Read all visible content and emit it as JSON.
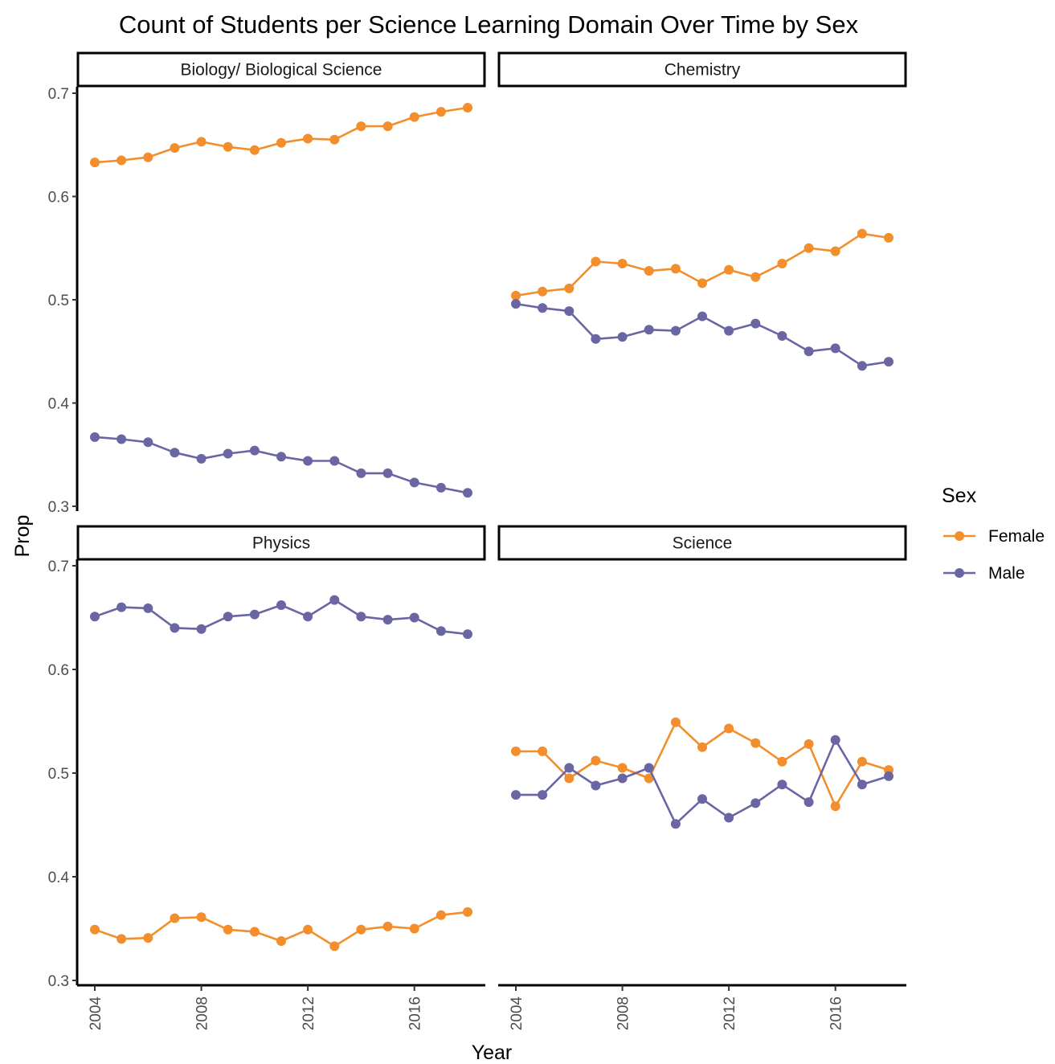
{
  "chart_data": {
    "type": "line",
    "title": "Count of Students per Science Learning Domain Over Time by Sex",
    "xlabel": "Year",
    "ylabel": "Prop",
    "ylim": [
      0.3,
      0.7
    ],
    "yticks": [
      "0.3",
      "0.4",
      "0.5",
      "0.6",
      "0.7"
    ],
    "xticks": [
      "2004",
      "2008",
      "2012",
      "2016"
    ],
    "grid": false,
    "legend": {
      "title": "Sex",
      "placement": "right",
      "entries": [
        "Female",
        "Male"
      ]
    },
    "colors": {
      "Female": "#F28E2B",
      "Male": "#6A66A3"
    },
    "x": [
      2004,
      2005,
      2006,
      2007,
      2008,
      2009,
      2010,
      2011,
      2012,
      2013,
      2014,
      2015,
      2016,
      2017,
      2018
    ],
    "panels": [
      {
        "label": "Biology/ Biological Science",
        "series": [
          {
            "name": "Female",
            "values": [
              0.633,
              0.635,
              0.638,
              0.647,
              0.653,
              0.648,
              0.645,
              0.652,
              0.656,
              0.655,
              0.668,
              0.668,
              0.677,
              0.682,
              0.686
            ]
          },
          {
            "name": "Male",
            "values": [
              0.367,
              0.365,
              0.362,
              0.352,
              0.346,
              0.351,
              0.354,
              0.348,
              0.344,
              0.344,
              0.332,
              0.332,
              0.323,
              0.318,
              0.313
            ]
          }
        ]
      },
      {
        "label": "Chemistry",
        "series": [
          {
            "name": "Female",
            "values": [
              0.504,
              0.508,
              0.511,
              0.537,
              0.535,
              0.528,
              0.53,
              0.516,
              0.529,
              0.522,
              0.535,
              0.55,
              0.547,
              0.564,
              0.56
            ]
          },
          {
            "name": "Male",
            "values": [
              0.496,
              0.492,
              0.489,
              0.462,
              0.464,
              0.471,
              0.47,
              0.484,
              0.47,
              0.477,
              0.465,
              0.45,
              0.453,
              0.436,
              0.44
            ]
          }
        ]
      },
      {
        "label": "Physics",
        "series": [
          {
            "name": "Female",
            "values": [
              0.349,
              0.34,
              0.341,
              0.36,
              0.361,
              0.349,
              0.347,
              0.338,
              0.349,
              0.333,
              0.349,
              0.352,
              0.35,
              0.363,
              0.366
            ]
          },
          {
            "name": "Male",
            "values": [
              0.651,
              0.66,
              0.659,
              0.64,
              0.639,
              0.651,
              0.653,
              0.662,
              0.651,
              0.667,
              0.651,
              0.648,
              0.65,
              0.637,
              0.634
            ]
          }
        ]
      },
      {
        "label": "Science",
        "series": [
          {
            "name": "Female",
            "values": [
              0.521,
              0.521,
              0.495,
              0.512,
              0.505,
              0.495,
              0.549,
              0.525,
              0.543,
              0.529,
              0.511,
              0.528,
              0.468,
              0.511,
              0.503
            ]
          },
          {
            "name": "Male",
            "values": [
              0.479,
              0.479,
              0.505,
              0.488,
              0.495,
              0.505,
              0.451,
              0.475,
              0.457,
              0.471,
              0.489,
              0.472,
              0.532,
              0.489,
              0.497
            ]
          }
        ]
      }
    ]
  }
}
